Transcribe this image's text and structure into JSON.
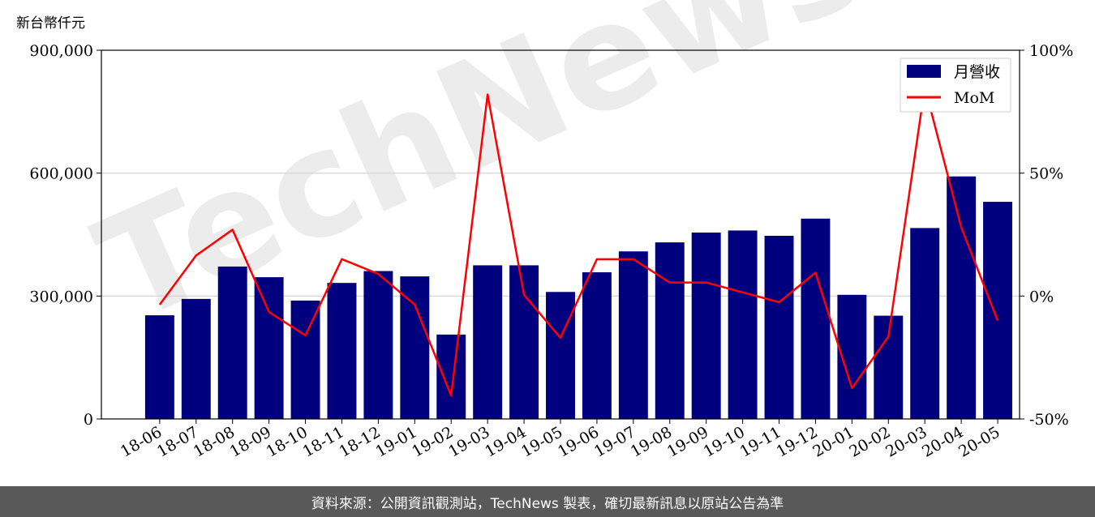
{
  "unit_label": "新台幣仟元",
  "watermark": "TechNews",
  "footer_text": "資料來源：公開資訊觀測站，TechNews 製表，確切最新訊息以原站公告為準",
  "colors": {
    "bar": "#00007f",
    "line": "#ff0000",
    "grid": "#d0d0d0",
    "footer_bg": "#595959",
    "watermark": "#e9e9e9"
  },
  "chart_data": {
    "type": "bar",
    "categories": [
      "18-06",
      "18-07",
      "18-08",
      "18-09",
      "18-10",
      "18-11",
      "18-12",
      "19-01",
      "19-02",
      "19-03",
      "19-04",
      "19-05",
      "19-06",
      "19-07",
      "19-08",
      "19-09",
      "19-10",
      "19-11",
      "19-12",
      "20-01",
      "20-02",
      "20-03",
      "20-04",
      "20-05"
    ],
    "series": [
      {
        "name": "月營收",
        "axis": "left",
        "type": "bar",
        "values": [
          253000,
          293000,
          372000,
          346000,
          289000,
          332000,
          361000,
          348000,
          206000,
          375000,
          375000,
          310000,
          358000,
          409000,
          431000,
          455000,
          460000,
          447000,
          489000,
          303000,
          252000,
          466000,
          592000,
          530000
        ]
      },
      {
        "name": "MoM",
        "axis": "right",
        "type": "line",
        "values": [
          -3.5,
          16.5,
          27,
          -6.5,
          -16,
          15,
          9,
          -3.5,
          -40.5,
          82,
          0.5,
          -17,
          15,
          15,
          5.5,
          5.5,
          1.5,
          -2.5,
          9.5,
          -37.5,
          -16.5,
          85,
          28,
          -10
        ]
      }
    ],
    "left_axis": {
      "ylim": [
        0,
        900000
      ],
      "ticks": [
        0,
        300000,
        600000,
        900000
      ],
      "tick_labels": [
        "0",
        "300,000",
        "600,000",
        "900,000"
      ]
    },
    "right_axis": {
      "ylim": [
        -50,
        100
      ],
      "ticks": [
        -50,
        0,
        50,
        100
      ],
      "tick_labels": [
        "-50%",
        "0%",
        "50%",
        "100%"
      ]
    },
    "grid": "horizontal",
    "legend": "top-right"
  }
}
